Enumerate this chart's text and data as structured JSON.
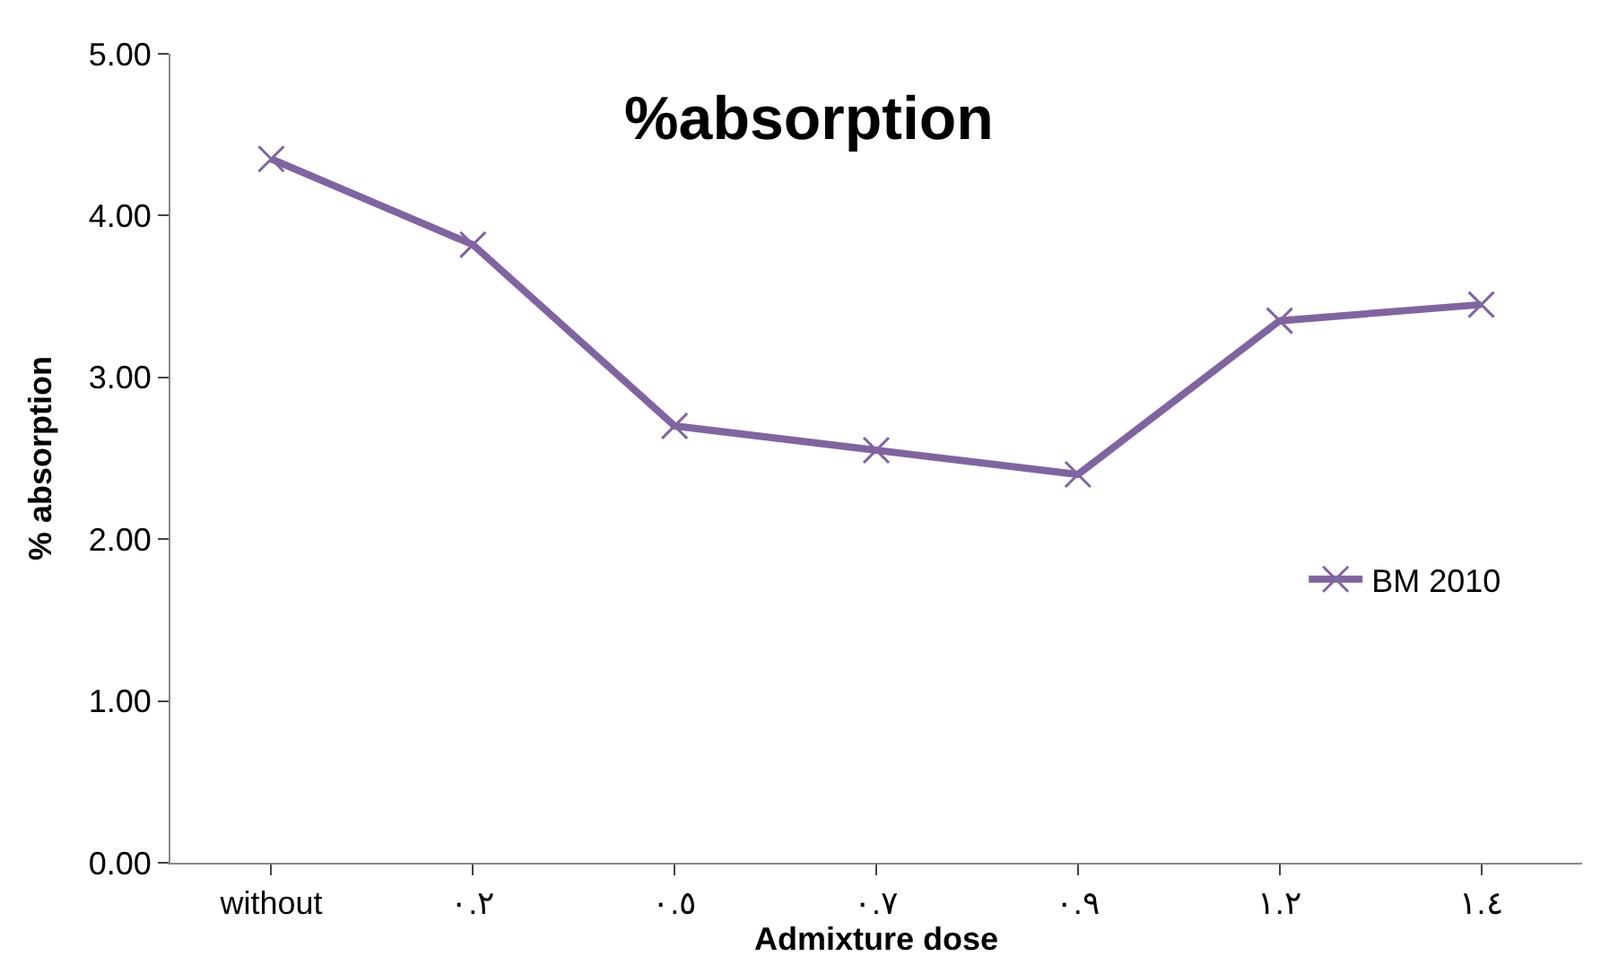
{
  "chart_data": {
    "type": "line",
    "title": "%absorption",
    "xlabel": "Admixture dose",
    "ylabel": "% absorption",
    "categories": [
      "without",
      "٠.٢",
      "٠.٥",
      "٠.٧",
      "٠.٩",
      "١.٢",
      "١.٤"
    ],
    "series": [
      {
        "name": "BM 2010",
        "color": "#8064a2",
        "values": [
          4.35,
          3.82,
          2.7,
          2.55,
          2.4,
          3.35,
          3.45
        ]
      }
    ],
    "ylim": [
      0,
      5
    ],
    "yticks": [
      {
        "value": 0,
        "label": "0.00"
      },
      {
        "value": 1,
        "label": "1.00"
      },
      {
        "value": 2,
        "label": "2.00"
      },
      {
        "value": 3,
        "label": "3.00"
      },
      {
        "value": 4,
        "label": "4.00"
      },
      {
        "value": 5,
        "label": "5.00"
      }
    ],
    "legend": "right",
    "marker": "cross",
    "line_style": "solid"
  }
}
